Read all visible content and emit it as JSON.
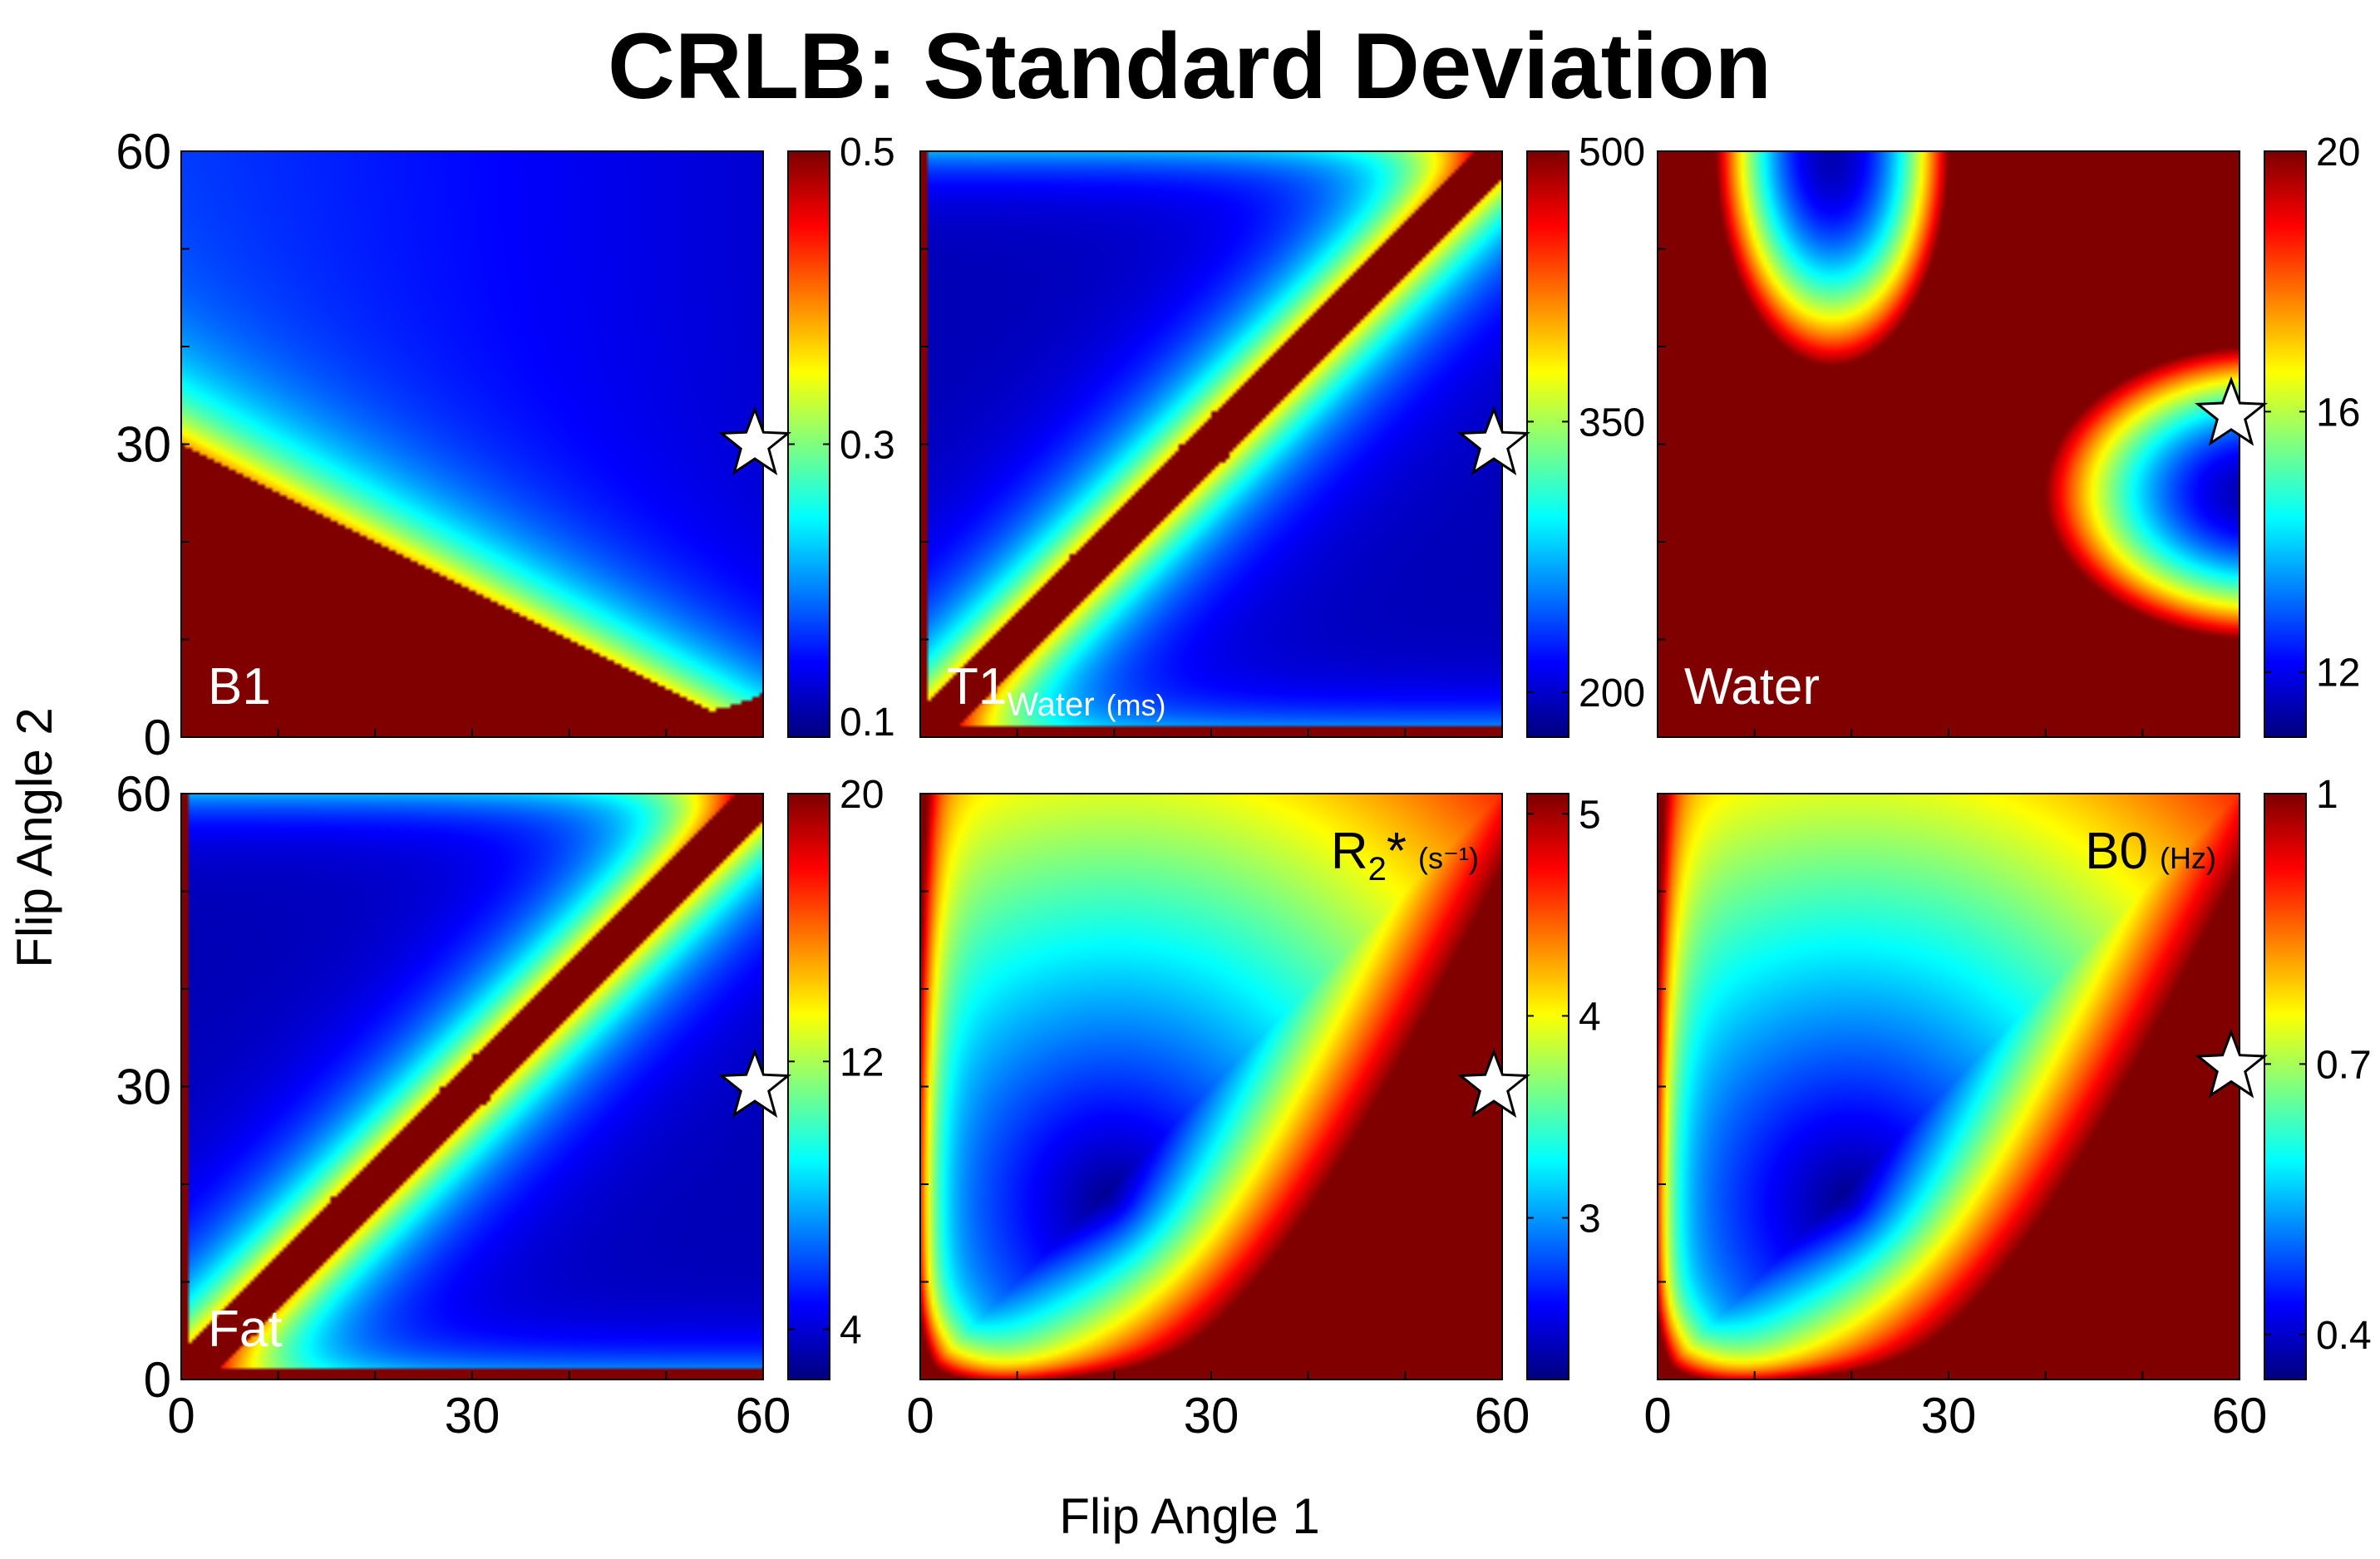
{
  "title": "CRLB: Standard Deviation",
  "xlabel": "Flip Angle 1",
  "ylabel": "Flip Angle 2",
  "axis_ticks": [
    "0",
    "30",
    "60"
  ],
  "star_color": "#ffffff",
  "chart_data": [
    {
      "type": "heatmap",
      "name": "B1",
      "label_main": "B1",
      "label_sub": "",
      "label_sup": "",
      "label_unit": "",
      "label_pos": "bottom-left",
      "label_color": "#ffffff",
      "xlim": [
        0,
        60
      ],
      "ylim": [
        0,
        60
      ],
      "clim": [
        0.1,
        0.5
      ],
      "colorbar_ticks": [
        "0.5",
        "0.3",
        "0.1"
      ],
      "colorbar_tick_values": [
        0.5,
        0.3,
        0.1
      ],
      "pattern": "b1",
      "optimal_point": [
        60,
        30
      ]
    },
    {
      "type": "heatmap",
      "name": "T1 Water",
      "label_main": "T1",
      "label_sub": "Water",
      "label_sup": "",
      "label_unit": "(ms)",
      "label_pos": "bottom-left",
      "label_color": "#ffffff",
      "xlim": [
        0,
        60
      ],
      "ylim": [
        0,
        60
      ],
      "clim": [
        175,
        500
      ],
      "colorbar_ticks": [
        "500",
        "350",
        "200"
      ],
      "colorbar_tick_values": [
        500,
        350,
        200
      ],
      "pattern": "split",
      "optimal_point": [
        60,
        30
      ]
    },
    {
      "type": "heatmap",
      "name": "Water",
      "label_main": "Water",
      "label_sub": "",
      "label_sup": "",
      "label_unit": "",
      "label_pos": "bottom-left",
      "label_color": "#ffffff",
      "xlim": [
        0,
        60
      ],
      "ylim": [
        0,
        60
      ],
      "clim": [
        11,
        20
      ],
      "colorbar_ticks": [
        "20",
        "16",
        "12"
      ],
      "colorbar_tick_values": [
        20,
        16,
        12
      ],
      "pattern": "water",
      "optimal_point": [
        60,
        33
      ]
    },
    {
      "type": "heatmap",
      "name": "Fat",
      "label_main": "Fat",
      "label_sub": "",
      "label_sup": "",
      "label_unit": "",
      "label_pos": "bottom-left",
      "label_color": "#ffffff",
      "xlim": [
        0,
        60
      ],
      "ylim": [
        0,
        60
      ],
      "clim": [
        2.5,
        20
      ],
      "colorbar_ticks": [
        "20",
        "12",
        "4"
      ],
      "colorbar_tick_values": [
        20,
        12,
        4
      ],
      "pattern": "split",
      "optimal_point": [
        60,
        30
      ]
    },
    {
      "type": "heatmap",
      "name": "R2*",
      "label_main": "R",
      "label_sub": "2",
      "label_sup": "",
      "label_unit": "(s⁻¹)",
      "label_star": "*",
      "label_pos": "top-right",
      "label_color": "#000000",
      "xlim": [
        0,
        60
      ],
      "ylim": [
        0,
        60
      ],
      "clim": [
        2.2,
        5.1
      ],
      "colorbar_ticks": [
        "5",
        "4",
        "3"
      ],
      "colorbar_tick_values": [
        5,
        4,
        3
      ],
      "pattern": "smooth",
      "optimal_point": [
        60,
        30
      ]
    },
    {
      "type": "heatmap",
      "name": "B0",
      "label_main": "B0",
      "label_sub": "",
      "label_sup": "",
      "label_unit": "(Hz)",
      "label_pos": "top-right",
      "label_color": "#000000",
      "xlim": [
        0,
        60
      ],
      "ylim": [
        0,
        60
      ],
      "clim": [
        0.35,
        1.0
      ],
      "colorbar_ticks": [
        "1",
        "0.7",
        "0.4"
      ],
      "colorbar_tick_values": [
        1,
        0.7,
        0.4
      ],
      "pattern": "smooth",
      "optimal_point": [
        60,
        32
      ]
    }
  ]
}
